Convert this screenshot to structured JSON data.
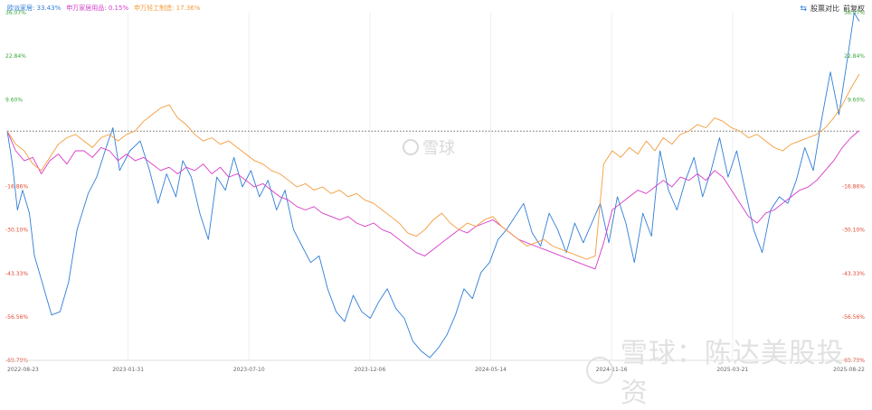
{
  "legend": [
    {
      "text": "欧派家居: 33.43%",
      "color": "#2f7ed8"
    },
    {
      "text": "申万家居用品: 0.15%",
      "color": "#d63bc9"
    },
    {
      "text": "申万轻工制造: 17.36%",
      "color": "#f39c3c"
    }
  ],
  "toolbar": {
    "icon": "exchange-icon",
    "compare": "股票对比",
    "adjust": "前复权"
  },
  "watermark": {
    "center": "雪球",
    "bottom": "雪球：陈达美股投资"
  },
  "chart_data": {
    "type": "line",
    "x_ticks": [
      "2022-08-23",
      "2023-01-31",
      "2023-07-10",
      "2023-12-06",
      "2024-05-14",
      "2024-11-16",
      "2025-03-21",
      "2025-08-22"
    ],
    "y_ticks_left": [
      {
        "label": "36.07%",
        "value": 36.07,
        "color": "#3aa83a"
      },
      {
        "label": "22.84%",
        "value": 22.84,
        "color": "#3aa83a"
      },
      {
        "label": "9.60%",
        "value": 9.6,
        "color": "#3aa83a"
      },
      {
        "label": "-16.86%",
        "value": -16.86,
        "color": "#e24a33"
      },
      {
        "label": "-30.10%",
        "value": -30.1,
        "color": "#e24a33"
      },
      {
        "label": "-43.33%",
        "value": -43.33,
        "color": "#e24a33"
      },
      {
        "label": "-56.56%",
        "value": -56.56,
        "color": "#e24a33"
      },
      {
        "label": "-69.79%",
        "value": -69.79,
        "color": "#e24a33"
      }
    ],
    "ylim": [
      -69.79,
      36.07
    ],
    "baseline": 0,
    "series": [
      {
        "name": "欧派家居",
        "color": "#2f7ed8",
        "points": [
          [
            0,
            0
          ],
          [
            0.6,
            -10
          ],
          [
            1.2,
            -24
          ],
          [
            1.8,
            -18
          ],
          [
            2.6,
            -25
          ],
          [
            3.2,
            -38
          ],
          [
            4.2,
            -47
          ],
          [
            5.2,
            -56
          ],
          [
            6.2,
            -55
          ],
          [
            7.2,
            -46
          ],
          [
            8.2,
            -30
          ],
          [
            9.5,
            -19
          ],
          [
            10.5,
            -14
          ],
          [
            11.6,
            -5
          ],
          [
            12.4,
            1
          ],
          [
            13.2,
            -12
          ],
          [
            14.4,
            -6
          ],
          [
            15.6,
            -3
          ],
          [
            16.7,
            -12
          ],
          [
            17.7,
            -22
          ],
          [
            18.7,
            -13
          ],
          [
            19.8,
            -20
          ],
          [
            20.6,
            -9
          ],
          [
            21.6,
            -14
          ],
          [
            22.6,
            -25
          ],
          [
            23.6,
            -33
          ],
          [
            24.6,
            -14
          ],
          [
            25.6,
            -18
          ],
          [
            26.6,
            -8
          ],
          [
            27.6,
            -17
          ],
          [
            28.6,
            -12
          ],
          [
            29.6,
            -20
          ],
          [
            30.6,
            -15
          ],
          [
            31.6,
            -24
          ],
          [
            32.6,
            -18
          ],
          [
            33.6,
            -30
          ],
          [
            34.6,
            -35
          ],
          [
            35.6,
            -40
          ],
          [
            36.6,
            -38
          ],
          [
            37.6,
            -48
          ],
          [
            38.6,
            -55
          ],
          [
            39.6,
            -58
          ],
          [
            40.6,
            -50
          ],
          [
            41.6,
            -55
          ],
          [
            42.6,
            -57
          ],
          [
            43.6,
            -52
          ],
          [
            44.6,
            -48
          ],
          [
            45.6,
            -54
          ],
          [
            46.6,
            -57
          ],
          [
            47.6,
            -64
          ],
          [
            48.6,
            -67
          ],
          [
            49.6,
            -69
          ],
          [
            50.6,
            -66
          ],
          [
            51.6,
            -62
          ],
          [
            52.6,
            -56
          ],
          [
            53.6,
            -48
          ],
          [
            54.6,
            -51
          ],
          [
            55.6,
            -43
          ],
          [
            56.6,
            -40
          ],
          [
            57.6,
            -33
          ],
          [
            58.6,
            -30
          ],
          [
            59.6,
            -26
          ],
          [
            60.6,
            -22
          ],
          [
            61.6,
            -31
          ],
          [
            62.6,
            -35
          ],
          [
            63.6,
            -25
          ],
          [
            64.6,
            -30
          ],
          [
            65.6,
            -37
          ],
          [
            66.6,
            -28
          ],
          [
            67.6,
            -34
          ],
          [
            68.6,
            -28
          ],
          [
            69.6,
            -22
          ],
          [
            70.6,
            -34
          ],
          [
            71.6,
            -20
          ],
          [
            72.6,
            -28
          ],
          [
            73.6,
            -40
          ],
          [
            74.6,
            -25
          ],
          [
            75.6,
            -32
          ],
          [
            76.6,
            -6
          ],
          [
            77.6,
            -18
          ],
          [
            78.6,
            -24
          ],
          [
            79.6,
            -15
          ],
          [
            80.6,
            -8
          ],
          [
            81.6,
            -20
          ],
          [
            82.6,
            -12
          ],
          [
            83.6,
            -2
          ],
          [
            84.6,
            -14
          ],
          [
            85.6,
            -6
          ],
          [
            86.6,
            -18
          ],
          [
            87.6,
            -30
          ],
          [
            88.6,
            -37
          ],
          [
            89.6,
            -24
          ],
          [
            90.6,
            -20
          ],
          [
            91.6,
            -22
          ],
          [
            92.6,
            -15
          ],
          [
            93.6,
            -5
          ],
          [
            94.6,
            -12
          ],
          [
            95.6,
            4
          ],
          [
            96.6,
            18
          ],
          [
            97.6,
            5
          ],
          [
            98.6,
            22
          ],
          [
            99.4,
            36
          ],
          [
            100,
            33.43
          ]
        ]
      },
      {
        "name": "申万家居用品",
        "color": "#d63bc9",
        "points": [
          [
            0,
            0
          ],
          [
            1,
            -6
          ],
          [
            2,
            -9
          ],
          [
            3,
            -8
          ],
          [
            4,
            -13
          ],
          [
            5,
            -9
          ],
          [
            6,
            -7
          ],
          [
            7,
            -10
          ],
          [
            8,
            -6
          ],
          [
            9,
            -6
          ],
          [
            10,
            -8
          ],
          [
            11,
            -5
          ],
          [
            12,
            -6
          ],
          [
            13,
            -9
          ],
          [
            14,
            -7
          ],
          [
            15,
            -9
          ],
          [
            16,
            -8
          ],
          [
            17,
            -10
          ],
          [
            18,
            -12
          ],
          [
            19,
            -11
          ],
          [
            20,
            -13
          ],
          [
            21,
            -11
          ],
          [
            22,
            -12
          ],
          [
            23,
            -10
          ],
          [
            24,
            -13
          ],
          [
            25,
            -11
          ],
          [
            26,
            -14
          ],
          [
            27,
            -13
          ],
          [
            28,
            -15
          ],
          [
            29,
            -17
          ],
          [
            30,
            -16
          ],
          [
            31,
            -18
          ],
          [
            32,
            -20
          ],
          [
            33,
            -21
          ],
          [
            34,
            -23
          ],
          [
            35,
            -24
          ],
          [
            36,
            -23
          ],
          [
            37,
            -25
          ],
          [
            38,
            -26
          ],
          [
            39,
            -27
          ],
          [
            40,
            -26
          ],
          [
            41,
            -28
          ],
          [
            42,
            -29
          ],
          [
            43,
            -28
          ],
          [
            44,
            -30
          ],
          [
            45,
            -31
          ],
          [
            46,
            -33
          ],
          [
            47,
            -35
          ],
          [
            48,
            -37
          ],
          [
            49,
            -38
          ],
          [
            50,
            -36
          ],
          [
            51,
            -34
          ],
          [
            52,
            -32
          ],
          [
            53,
            -30
          ],
          [
            54,
            -31
          ],
          [
            55,
            -29
          ],
          [
            56,
            -28
          ],
          [
            57,
            -27
          ],
          [
            58,
            -29
          ],
          [
            59,
            -31
          ],
          [
            60,
            -33
          ],
          [
            61,
            -34
          ],
          [
            62,
            -35
          ],
          [
            63,
            -36
          ],
          [
            64,
            -37
          ],
          [
            65,
            -38
          ],
          [
            66,
            -39
          ],
          [
            67,
            -40
          ],
          [
            68,
            -41
          ],
          [
            69,
            -42
          ],
          [
            70,
            -34
          ],
          [
            71,
            -24
          ],
          [
            72,
            -22
          ],
          [
            73,
            -20
          ],
          [
            74,
            -18
          ],
          [
            75,
            -19
          ],
          [
            76,
            -17
          ],
          [
            77,
            -15
          ],
          [
            78,
            -17
          ],
          [
            79,
            -14
          ],
          [
            80,
            -15
          ],
          [
            81,
            -13
          ],
          [
            82,
            -15
          ],
          [
            83,
            -12
          ],
          [
            84,
            -14
          ],
          [
            85,
            -18
          ],
          [
            86,
            -22
          ],
          [
            87,
            -26
          ],
          [
            88,
            -28
          ],
          [
            89,
            -25
          ],
          [
            90,
            -24
          ],
          [
            91,
            -22
          ],
          [
            92,
            -20
          ],
          [
            93,
            -18
          ],
          [
            94,
            -17
          ],
          [
            95,
            -15
          ],
          [
            96,
            -12
          ],
          [
            97,
            -9
          ],
          [
            98,
            -5
          ],
          [
            99,
            -2
          ],
          [
            100,
            0.15
          ]
        ]
      },
      {
        "name": "申万轻工制造",
        "color": "#f39c3c",
        "points": [
          [
            0,
            0
          ],
          [
            1,
            -4
          ],
          [
            2,
            -6
          ],
          [
            3,
            -10
          ],
          [
            4,
            -12
          ],
          [
            5,
            -8
          ],
          [
            6,
            -4
          ],
          [
            7,
            -2
          ],
          [
            8,
            -1
          ],
          [
            9,
            -3
          ],
          [
            10,
            -5
          ],
          [
            11,
            -2
          ],
          [
            12,
            -1
          ],
          [
            13,
            -3
          ],
          [
            14,
            -1
          ],
          [
            15,
            0
          ],
          [
            16,
            3
          ],
          [
            17,
            5
          ],
          [
            18,
            7
          ],
          [
            19,
            8
          ],
          [
            20,
            4
          ],
          [
            21,
            2
          ],
          [
            22,
            -1
          ],
          [
            23,
            -3
          ],
          [
            24,
            -2
          ],
          [
            25,
            -4
          ],
          [
            26,
            -3
          ],
          [
            27,
            -5
          ],
          [
            28,
            -7
          ],
          [
            29,
            -9
          ],
          [
            30,
            -10
          ],
          [
            31,
            -12
          ],
          [
            32,
            -13
          ],
          [
            33,
            -15
          ],
          [
            34,
            -17
          ],
          [
            35,
            -16
          ],
          [
            36,
            -18
          ],
          [
            37,
            -17
          ],
          [
            38,
            -19
          ],
          [
            39,
            -18
          ],
          [
            40,
            -20
          ],
          [
            41,
            -19
          ],
          [
            42,
            -21
          ],
          [
            43,
            -22
          ],
          [
            44,
            -24
          ],
          [
            45,
            -26
          ],
          [
            46,
            -28
          ],
          [
            47,
            -31
          ],
          [
            48,
            -32
          ],
          [
            49,
            -30
          ],
          [
            50,
            -27
          ],
          [
            51,
            -25
          ],
          [
            52,
            -28
          ],
          [
            53,
            -30
          ],
          [
            54,
            -28
          ],
          [
            55,
            -29
          ],
          [
            56,
            -27
          ],
          [
            57,
            -26
          ],
          [
            58,
            -29
          ],
          [
            59,
            -31
          ],
          [
            60,
            -33
          ],
          [
            61,
            -35
          ],
          [
            62,
            -34
          ],
          [
            63,
            -33
          ],
          [
            64,
            -35
          ],
          [
            65,
            -36
          ],
          [
            66,
            -37
          ],
          [
            67,
            -38
          ],
          [
            68,
            -39
          ],
          [
            69,
            -38
          ],
          [
            70,
            -10
          ],
          [
            71,
            -6
          ],
          [
            72,
            -8
          ],
          [
            73,
            -5
          ],
          [
            74,
            -7
          ],
          [
            75,
            -3
          ],
          [
            76,
            -6
          ],
          [
            77,
            -2
          ],
          [
            78,
            -4
          ],
          [
            79,
            -1
          ],
          [
            80,
            0
          ],
          [
            81,
            2
          ],
          [
            82,
            1
          ],
          [
            83,
            4
          ],
          [
            84,
            3
          ],
          [
            85,
            1
          ],
          [
            86,
            0
          ],
          [
            87,
            -2
          ],
          [
            88,
            -1
          ],
          [
            89,
            -3
          ],
          [
            90,
            -5
          ],
          [
            91,
            -6
          ],
          [
            92,
            -4
          ],
          [
            93,
            -3
          ],
          [
            94,
            -2
          ],
          [
            95,
            -1
          ],
          [
            96,
            1
          ],
          [
            97,
            4
          ],
          [
            98,
            8
          ],
          [
            99,
            13
          ],
          [
            100,
            17.36
          ]
        ]
      }
    ]
  }
}
